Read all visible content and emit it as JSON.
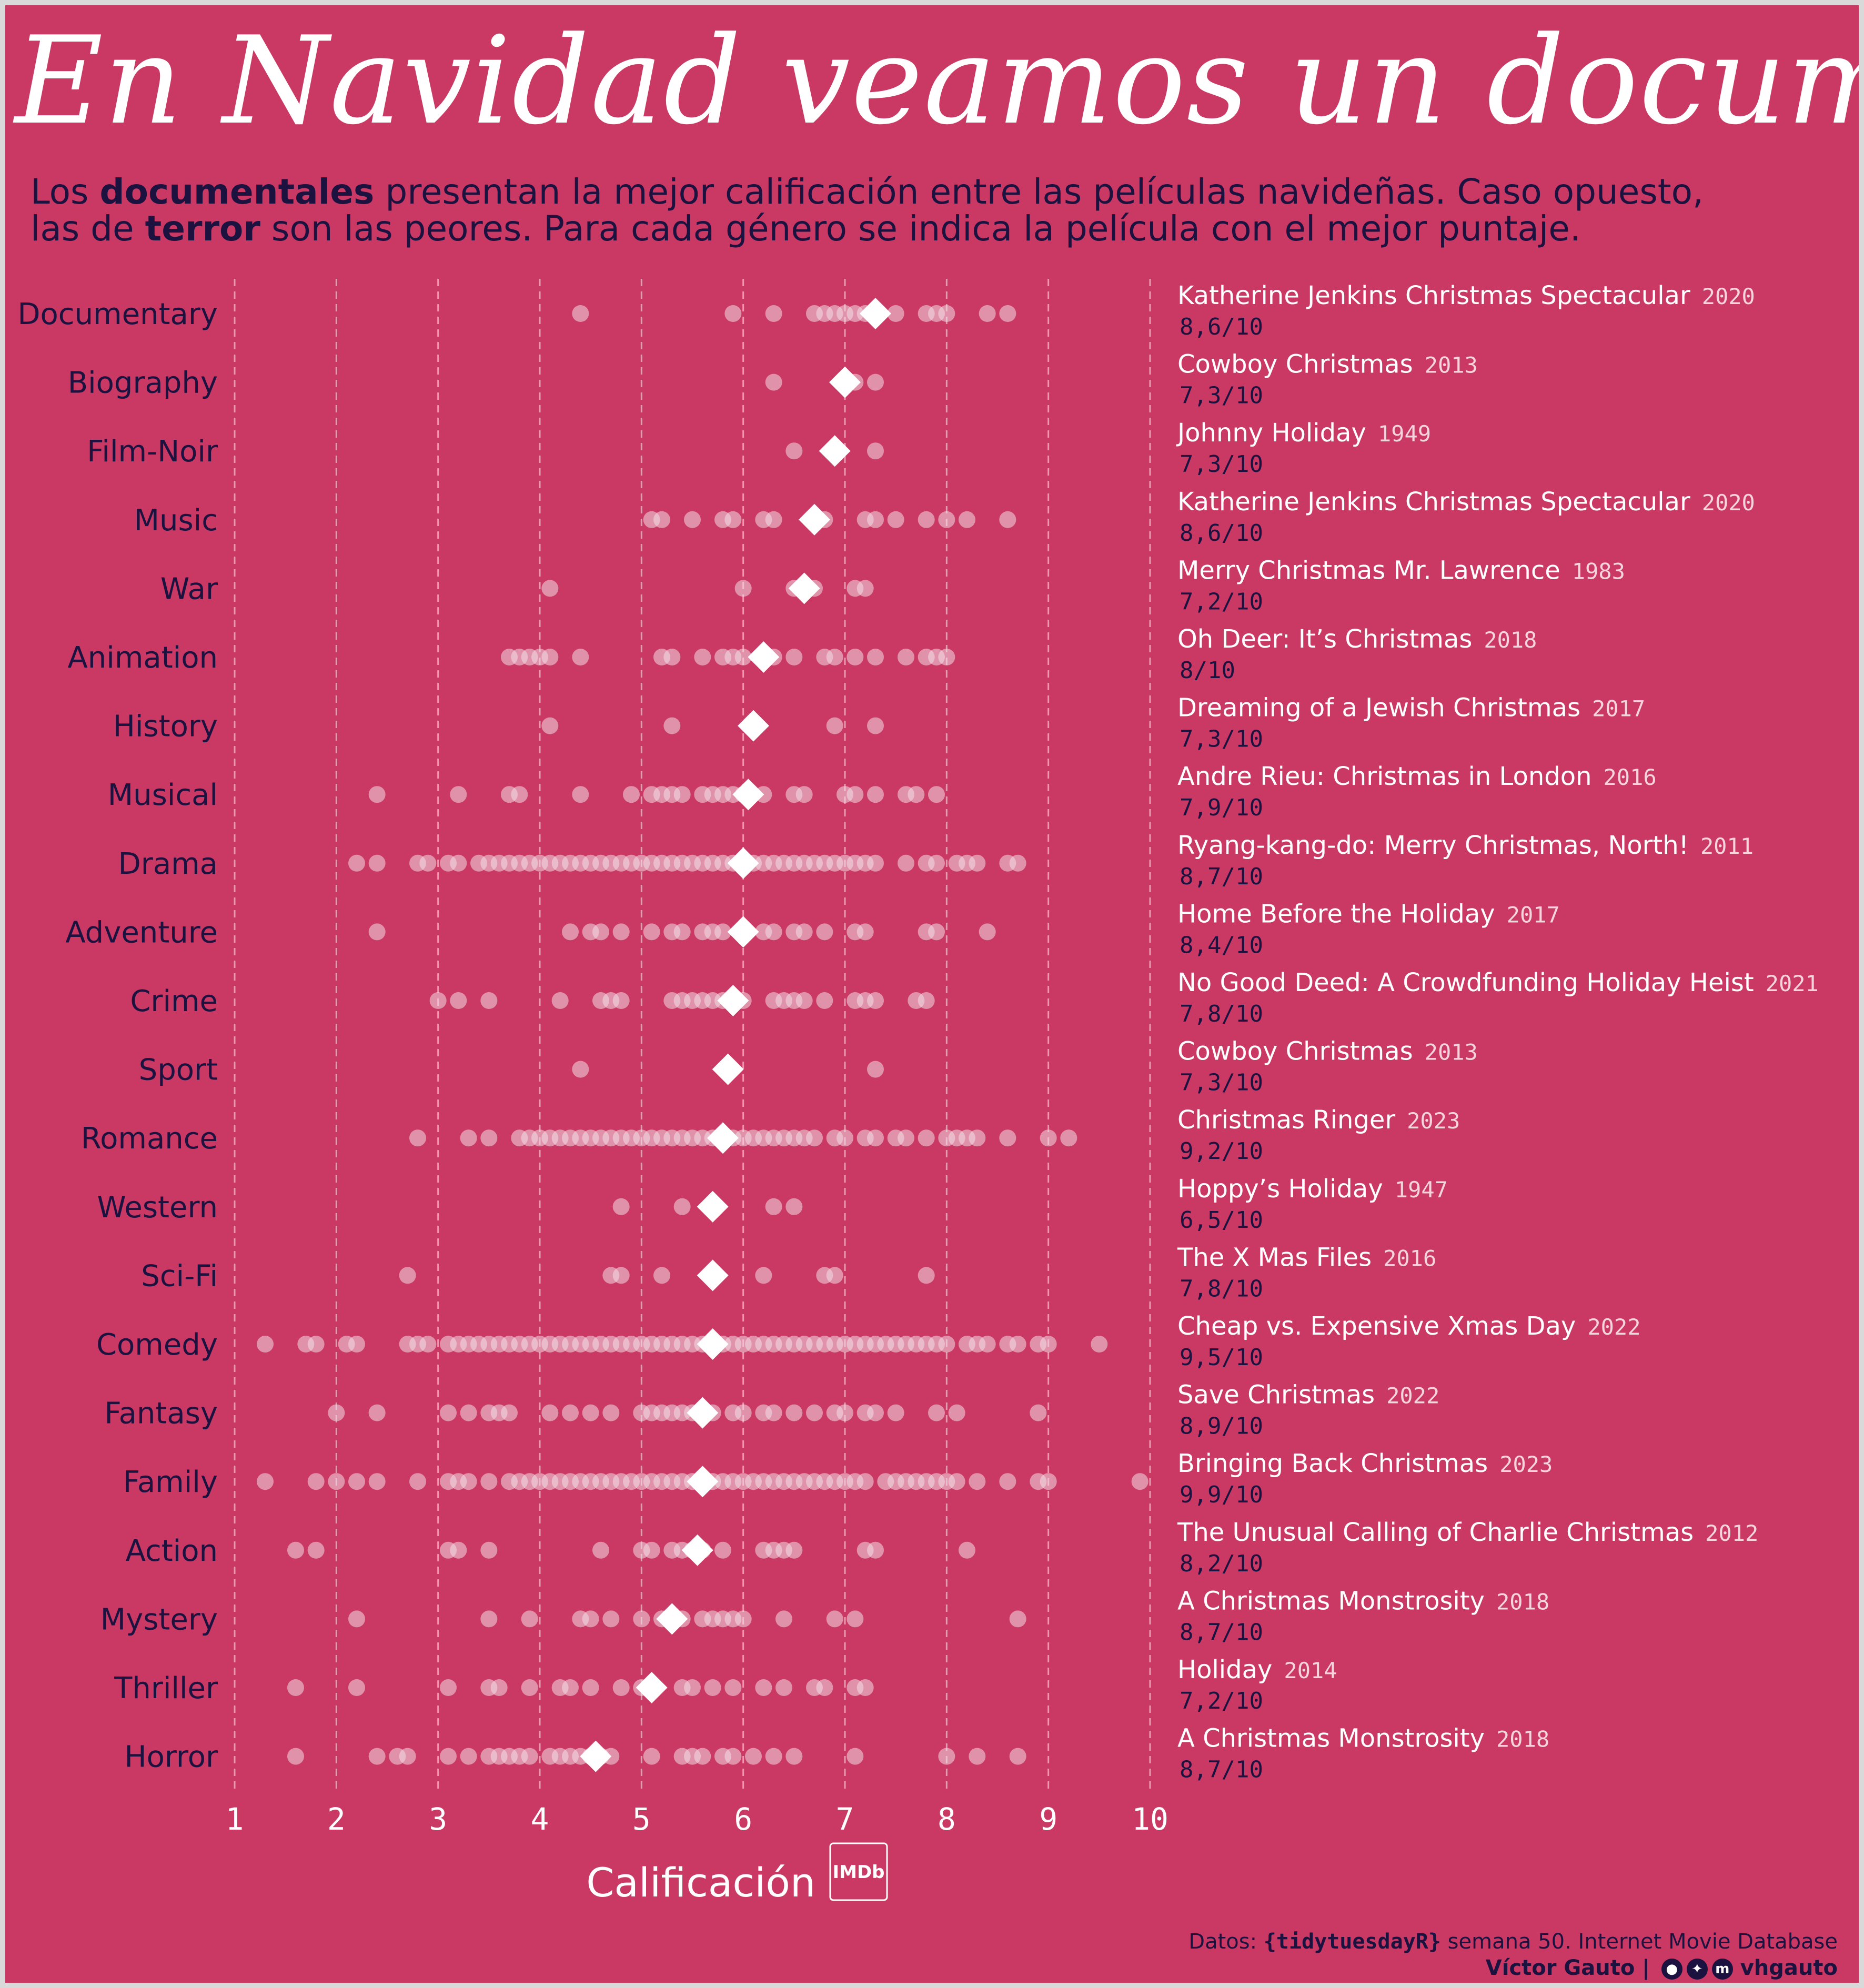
{
  "title": "En Navidad veamos un documental",
  "subtitle": {
    "parts": [
      {
        "text": "Los ",
        "bold": false
      },
      {
        "text": "documentales",
        "bold": true
      },
      {
        "text": " presentan la mejor calificación entre las películas navideñas. Caso opuesto, ",
        "bold": false
      },
      {
        "text": "las de ",
        "bold": false
      },
      {
        "text": "terror",
        "bold": true
      },
      {
        "text": " son las peores. Para cada género se indica la película con el mejor puntaje.",
        "bold": false
      }
    ]
  },
  "colors": {
    "background": "#c93964",
    "frame": "#d9d9d9",
    "ink": "#1b1240",
    "dot": "#f2dde4",
    "diamond": "#ffffff",
    "grid": "#e79ab1"
  },
  "chart_data": {
    "type": "scatter",
    "xlabel": "Calificación",
    "xlabel_badge": "IMDb",
    "xlim": [
      1,
      10
    ],
    "x_ticks": [
      1,
      2,
      3,
      4,
      5,
      6,
      7,
      8,
      9,
      10
    ],
    "grid": "vertical dashed",
    "marker_note": "circles = individual films, diamond = genre mean",
    "genres": [
      {
        "name": "Documentary",
        "mean": 7.3,
        "ratings": [
          4.4,
          5.9,
          6.3,
          6.7,
          6.8,
          6.9,
          7.0,
          7.1,
          7.2,
          7.5,
          7.8,
          7.9,
          8.0,
          8.4,
          8.6
        ],
        "best": {
          "title": "Katherine Jenkins Christmas Spectacular",
          "year": "2020",
          "score": "8,6/10"
        }
      },
      {
        "name": "Biography",
        "mean": 7.0,
        "ratings": [
          6.3,
          7.1,
          7.3
        ],
        "best": {
          "title": "Cowboy Christmas",
          "year": "2013",
          "score": "7,3/10"
        }
      },
      {
        "name": "Film-Noir",
        "mean": 6.9,
        "ratings": [
          6.5,
          7.3
        ],
        "best": {
          "title": "Johnny Holiday",
          "year": "1949",
          "score": "7,3/10"
        }
      },
      {
        "name": "Music",
        "mean": 6.7,
        "ratings": [
          5.1,
          5.2,
          5.5,
          5.8,
          5.9,
          6.2,
          6.3,
          6.8,
          7.2,
          7.3,
          7.5,
          7.8,
          8.0,
          8.2,
          8.6
        ],
        "best": {
          "title": "Katherine Jenkins Christmas Spectacular",
          "year": "2020",
          "score": "8,6/10"
        }
      },
      {
        "name": "War",
        "mean": 6.6,
        "ratings": [
          4.1,
          6.0,
          6.5,
          6.7,
          7.1,
          7.2
        ],
        "best": {
          "title": "Merry Christmas Mr. Lawrence",
          "year": "1983",
          "score": "7,2/10"
        }
      },
      {
        "name": "Animation",
        "mean": 6.2,
        "ratings": [
          3.7,
          3.8,
          3.9,
          4.0,
          4.1,
          4.4,
          5.2,
          5.3,
          5.6,
          5.8,
          5.9,
          6.0,
          6.3,
          6.5,
          6.8,
          6.9,
          7.1,
          7.3,
          7.6,
          7.8,
          7.9,
          8.0
        ],
        "best": {
          "title": "Oh Deer: It’s Christmas",
          "year": "2018",
          "score": "8/10"
        }
      },
      {
        "name": "History",
        "mean": 6.1,
        "ratings": [
          4.1,
          5.3,
          6.9,
          7.3
        ],
        "best": {
          "title": "Dreaming of a Jewish Christmas",
          "year": "2017",
          "score": "7,3/10"
        }
      },
      {
        "name": "Musical",
        "mean": 6.05,
        "ratings": [
          2.4,
          3.2,
          3.7,
          3.8,
          4.4,
          4.9,
          5.1,
          5.2,
          5.3,
          5.4,
          5.6,
          5.7,
          5.8,
          5.9,
          6.0,
          6.2,
          6.5,
          6.6,
          7.0,
          7.1,
          7.3,
          7.6,
          7.7,
          7.9
        ],
        "best": {
          "title": "Andre Rieu: Christmas in London",
          "year": "2016",
          "score": "7,9/10"
        }
      },
      {
        "name": "Drama",
        "mean": 6.0,
        "ratings": [
          2.2,
          2.4,
          2.8,
          2.9,
          3.1,
          3.2,
          3.4,
          3.5,
          3.6,
          3.7,
          3.8,
          3.9,
          4.0,
          4.1,
          4.2,
          4.3,
          4.4,
          4.5,
          4.6,
          4.7,
          4.8,
          4.9,
          5.0,
          5.1,
          5.2,
          5.3,
          5.4,
          5.5,
          5.6,
          5.7,
          5.8,
          5.9,
          6.0,
          6.1,
          6.2,
          6.3,
          6.4,
          6.5,
          6.6,
          6.7,
          6.8,
          6.9,
          7.0,
          7.1,
          7.2,
          7.3,
          7.6,
          7.8,
          7.9,
          8.1,
          8.2,
          8.3,
          8.6,
          8.7
        ],
        "best": {
          "title": "Ryang-kang-do: Merry Christmas, North!",
          "year": "2011",
          "score": "8,7/10"
        }
      },
      {
        "name": "Adventure",
        "mean": 6.0,
        "ratings": [
          2.4,
          4.3,
          4.5,
          4.6,
          4.8,
          5.1,
          5.3,
          5.4,
          5.6,
          5.7,
          5.8,
          6.2,
          6.3,
          6.5,
          6.6,
          6.8,
          7.1,
          7.2,
          7.8,
          7.9,
          8.4
        ],
        "best": {
          "title": "Home Before the Holiday",
          "year": "2017",
          "score": "8,4/10"
        }
      },
      {
        "name": "Crime",
        "mean": 5.9,
        "ratings": [
          3.0,
          3.2,
          3.5,
          4.2,
          4.6,
          4.7,
          4.8,
          5.3,
          5.4,
          5.5,
          5.6,
          5.7,
          5.8,
          6.0,
          6.3,
          6.4,
          6.5,
          6.6,
          6.8,
          7.1,
          7.2,
          7.3,
          7.7,
          7.8
        ],
        "best": {
          "title": "No Good Deed: A Crowdfunding Holiday Heist",
          "year": "2021",
          "score": "7,8/10"
        }
      },
      {
        "name": "Sport",
        "mean": 5.85,
        "ratings": [
          4.4,
          7.3
        ],
        "best": {
          "title": "Cowboy Christmas",
          "year": "2013",
          "score": "7,3/10"
        }
      },
      {
        "name": "Romance",
        "mean": 5.8,
        "ratings": [
          2.8,
          3.3,
          3.5,
          3.8,
          3.9,
          4.0,
          4.1,
          4.2,
          4.3,
          4.4,
          4.5,
          4.6,
          4.7,
          4.8,
          4.9,
          5.0,
          5.1,
          5.2,
          5.3,
          5.4,
          5.5,
          5.6,
          5.7,
          5.8,
          5.9,
          6.0,
          6.1,
          6.2,
          6.3,
          6.4,
          6.5,
          6.6,
          6.7,
          6.9,
          7.0,
          7.2,
          7.3,
          7.5,
          7.6,
          7.8,
          8.0,
          8.1,
          8.2,
          8.3,
          8.6,
          9.0,
          9.2
        ],
        "best": {
          "title": "Christmas Ringer",
          "year": "2023",
          "score": "9,2/10"
        }
      },
      {
        "name": "Western",
        "mean": 5.7,
        "ratings": [
          4.8,
          5.4,
          6.3,
          6.5
        ],
        "best": {
          "title": "Hoppy’s Holiday",
          "year": "1947",
          "score": "6,5/10"
        }
      },
      {
        "name": "Sci-Fi",
        "mean": 5.7,
        "ratings": [
          2.7,
          4.7,
          4.8,
          5.2,
          6.2,
          6.8,
          6.9,
          7.8
        ],
        "best": {
          "title": "The X Mas Files",
          "year": "2016",
          "score": "7,8/10"
        }
      },
      {
        "name": "Comedy",
        "mean": 5.7,
        "ratings": [
          1.3,
          1.7,
          1.8,
          2.1,
          2.2,
          2.7,
          2.8,
          2.9,
          3.1,
          3.2,
          3.3,
          3.4,
          3.5,
          3.6,
          3.7,
          3.8,
          3.9,
          4.0,
          4.1,
          4.2,
          4.3,
          4.4,
          4.5,
          4.6,
          4.7,
          4.8,
          4.9,
          5.0,
          5.1,
          5.2,
          5.3,
          5.4,
          5.5,
          5.6,
          5.7,
          5.8,
          5.9,
          6.0,
          6.1,
          6.2,
          6.3,
          6.4,
          6.5,
          6.6,
          6.7,
          6.8,
          6.9,
          7.0,
          7.1,
          7.2,
          7.3,
          7.4,
          7.5,
          7.6,
          7.7,
          7.8,
          7.9,
          8.0,
          8.2,
          8.3,
          8.4,
          8.6,
          8.7,
          8.9,
          9.0,
          9.5
        ],
        "best": {
          "title": "Cheap vs. Expensive Xmas Day",
          "year": "2022",
          "score": "9,5/10"
        }
      },
      {
        "name": "Fantasy",
        "mean": 5.6,
        "ratings": [
          2.0,
          2.4,
          3.1,
          3.3,
          3.5,
          3.6,
          3.7,
          4.1,
          4.3,
          4.5,
          4.7,
          5.0,
          5.1,
          5.2,
          5.3,
          5.4,
          5.5,
          5.7,
          5.9,
          6.0,
          6.2,
          6.3,
          6.5,
          6.7,
          6.9,
          7.0,
          7.2,
          7.3,
          7.5,
          7.9,
          8.1,
          8.9
        ],
        "best": {
          "title": "Save Christmas",
          "year": "2022",
          "score": "8,9/10"
        }
      },
      {
        "name": "Family",
        "mean": 5.6,
        "ratings": [
          1.3,
          1.8,
          2.0,
          2.2,
          2.4,
          2.8,
          3.1,
          3.2,
          3.3,
          3.5,
          3.7,
          3.8,
          3.9,
          4.0,
          4.1,
          4.2,
          4.3,
          4.4,
          4.5,
          4.6,
          4.7,
          4.8,
          4.9,
          5.0,
          5.1,
          5.2,
          5.3,
          5.4,
          5.5,
          5.6,
          5.7,
          5.8,
          5.9,
          6.0,
          6.1,
          6.2,
          6.3,
          6.4,
          6.5,
          6.6,
          6.7,
          6.8,
          6.9,
          7.0,
          7.1,
          7.2,
          7.4,
          7.5,
          7.6,
          7.7,
          7.8,
          7.9,
          8.0,
          8.1,
          8.3,
          8.6,
          8.9,
          9.0,
          9.9
        ],
        "best": {
          "title": "Bringing Back Christmas",
          "year": "2023",
          "score": "9,9/10"
        }
      },
      {
        "name": "Action",
        "mean": 5.55,
        "ratings": [
          1.6,
          1.8,
          3.1,
          3.2,
          3.5,
          4.6,
          5.0,
          5.1,
          5.3,
          5.4,
          5.5,
          5.6,
          5.8,
          6.2,
          6.3,
          6.4,
          6.5,
          7.2,
          7.3,
          8.2
        ],
        "best": {
          "title": "The Unusual Calling of Charlie Christmas",
          "year": "2012",
          "score": "8,2/10"
        }
      },
      {
        "name": "Mystery",
        "mean": 5.3,
        "ratings": [
          2.2,
          3.5,
          3.9,
          4.4,
          4.5,
          4.7,
          5.0,
          5.2,
          5.4,
          5.6,
          5.7,
          5.8,
          5.9,
          6.0,
          6.4,
          6.9,
          7.1,
          8.7
        ],
        "best": {
          "title": "A Christmas Monstrosity",
          "year": "2018",
          "score": "8,7/10"
        }
      },
      {
        "name": "Thriller",
        "mean": 5.1,
        "ratings": [
          1.6,
          2.2,
          3.1,
          3.5,
          3.6,
          3.9,
          4.2,
          4.3,
          4.5,
          4.8,
          5.0,
          5.4,
          5.5,
          5.7,
          5.9,
          6.2,
          6.4,
          6.7,
          6.8,
          7.1,
          7.2
        ],
        "best": {
          "title": "Holiday",
          "year": "2014",
          "score": "7,2/10"
        }
      },
      {
        "name": "Horror",
        "mean": 4.55,
        "ratings": [
          1.6,
          2.4,
          2.6,
          2.7,
          3.1,
          3.3,
          3.5,
          3.6,
          3.7,
          3.8,
          3.9,
          4.1,
          4.2,
          4.3,
          4.4,
          4.5,
          4.6,
          4.7,
          5.1,
          5.4,
          5.5,
          5.6,
          5.8,
          5.9,
          6.1,
          6.3,
          6.5,
          7.1,
          8.0,
          8.3,
          8.7
        ],
        "best": {
          "title": "A Christmas Monstrosity",
          "year": "2018",
          "score": "8,7/10"
        }
      }
    ]
  },
  "caption": {
    "line1_prefix": "Datos: ",
    "line1_open": "{",
    "line1_pkg": "tidytuesdayR",
    "line1_close": "}",
    "line1_suffix": " semana 50. Internet Movie Database",
    "line2_author": "Víctor Gauto",
    "line2_sep": " | ",
    "line2_handle": "vhgauto",
    "icons": [
      "github-icon",
      "twitter-icon",
      "mastodon-icon"
    ]
  }
}
